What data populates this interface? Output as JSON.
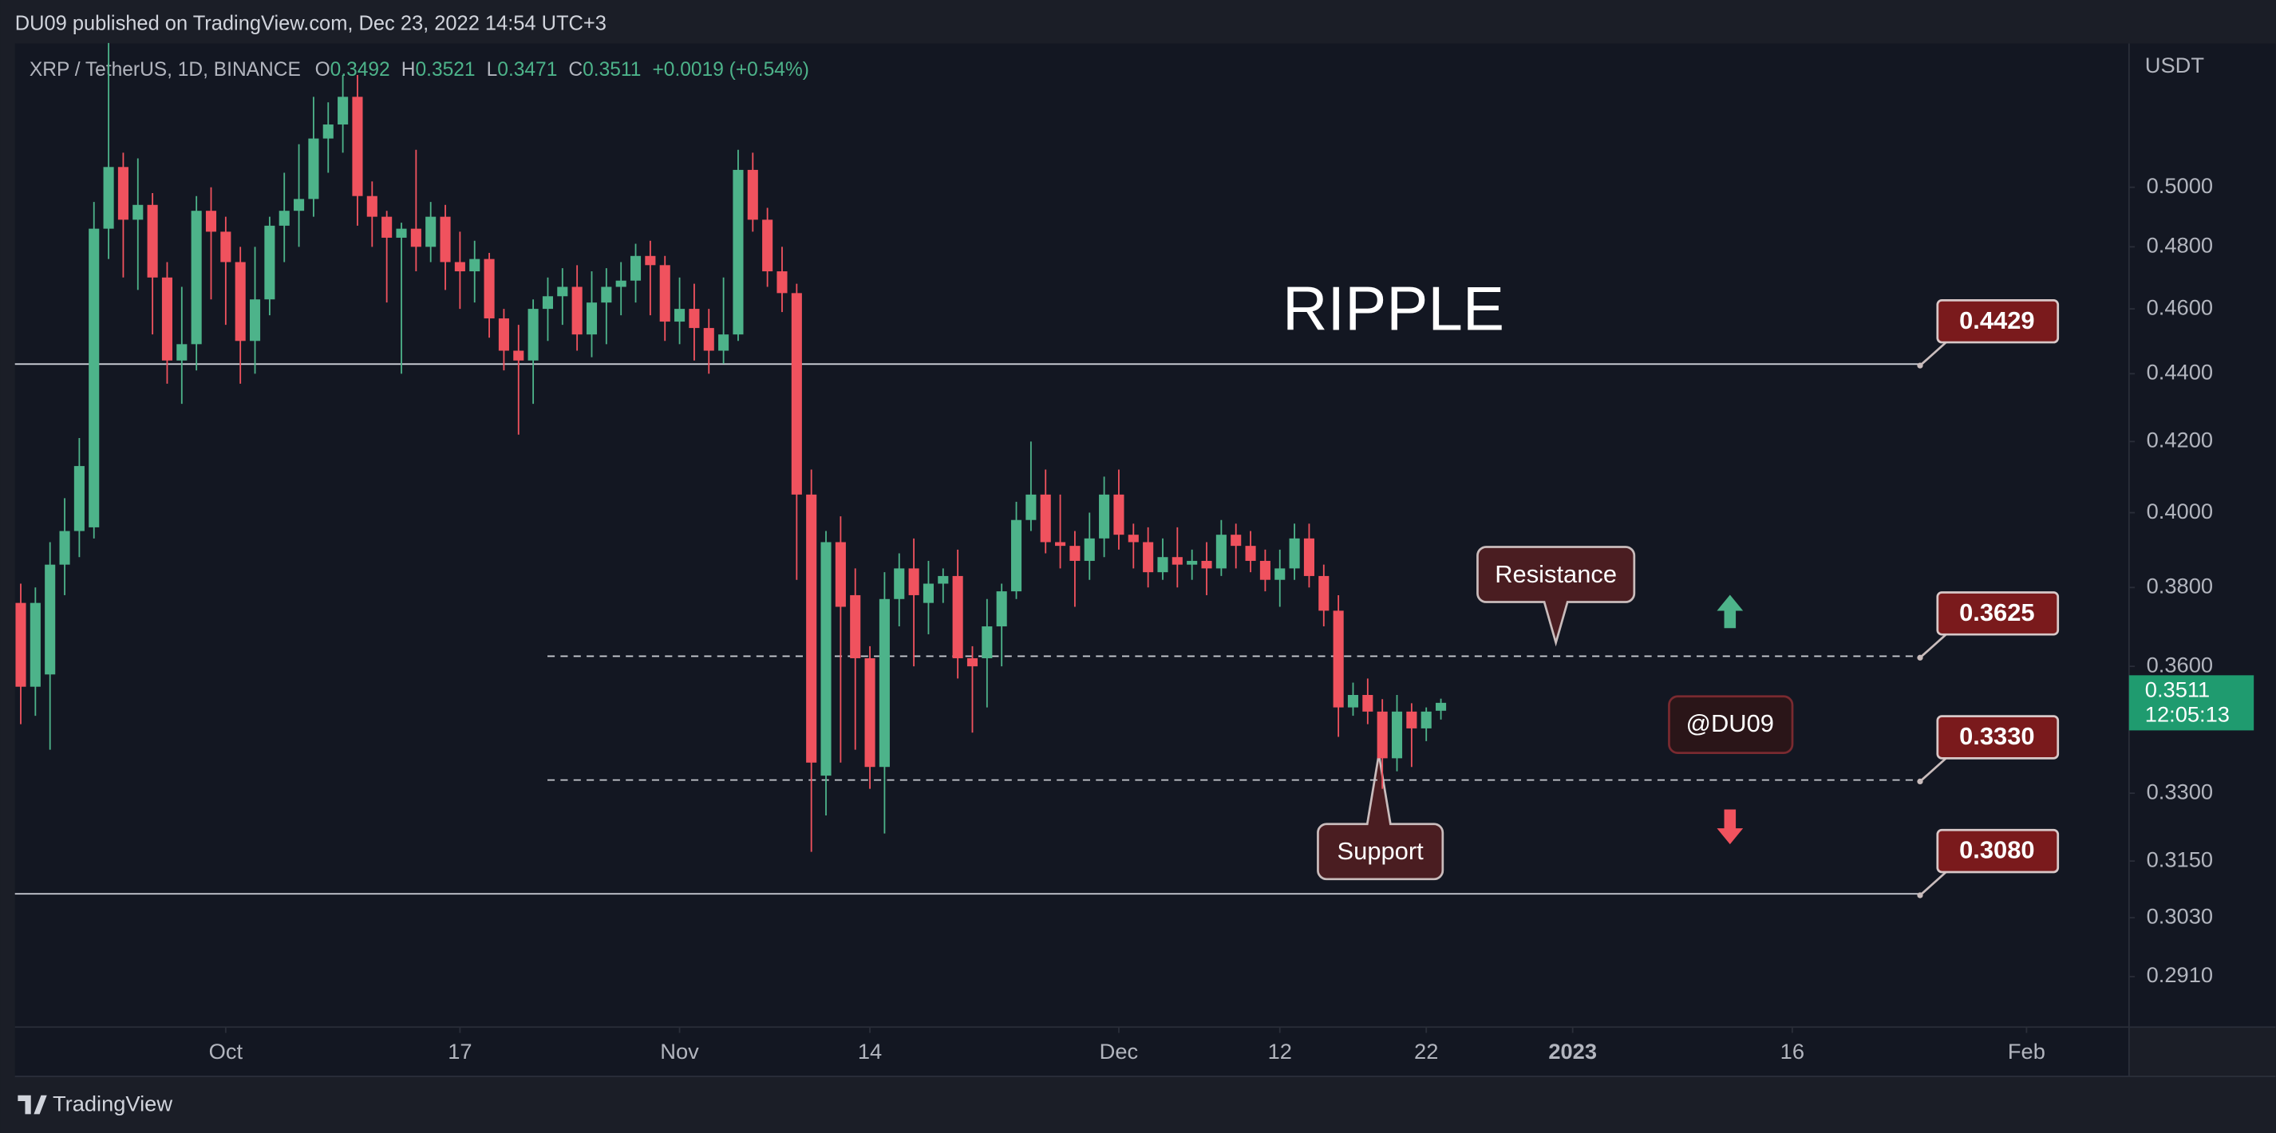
{
  "header": {
    "published": "DU09 published on TradingView.com, Dec 23, 2022 14:54 UTC+3"
  },
  "chart_data": {
    "type": "candlestick",
    "symbol": "XRP / TetherUS, 1D, BINANCE",
    "ohlc_labels": [
      "O",
      "H",
      "L",
      "C"
    ],
    "change": "+0.0019 (+0.54%)",
    "title": "RIPPLE",
    "up_color": "#4db38a",
    "down_color": "#f0525e",
    "log_scale": true,
    "grid": false,
    "y_unit": "USDT",
    "ylim": [
      0.2811,
      0.5518
    ],
    "yticks": [
      {
        "value": 0.5,
        "label": "0.5000"
      },
      {
        "value": 0.48,
        "label": "0.4800"
      },
      {
        "value": 0.46,
        "label": "0.4600"
      },
      {
        "value": 0.44,
        "label": "0.4400"
      },
      {
        "value": 0.42,
        "label": "0.4200"
      },
      {
        "value": 0.4,
        "label": "0.4000"
      },
      {
        "value": 0.38,
        "label": "0.3800"
      },
      {
        "value": 0.36,
        "label": "0.3600"
      },
      {
        "value": 0.33,
        "label": "0.3300"
      },
      {
        "value": 0.315,
        "label": "0.3150"
      },
      {
        "value": 0.303,
        "label": "0.3030"
      },
      {
        "value": 0.291,
        "label": "0.2910"
      }
    ],
    "xlim": [
      "2022-09-17",
      "2023-02-08"
    ],
    "xticks": [
      {
        "value": "2022-10-01",
        "label": "Oct"
      },
      {
        "value": "2022-10-17",
        "label": "17"
      },
      {
        "value": "2022-11-01",
        "label": "Nov"
      },
      {
        "value": "2022-11-14",
        "label": "14"
      },
      {
        "value": "2022-12-01",
        "label": "Dec"
      },
      {
        "value": "2022-12-12",
        "label": "12"
      },
      {
        "value": "2022-12-22",
        "label": "22"
      },
      {
        "value": "2023-01-01",
        "label": "2023"
      },
      {
        "value": "2023-01-16",
        "label": "16"
      },
      {
        "value": "2023-02-01",
        "label": "Feb"
      }
    ],
    "x": [
      "2022-09-17",
      "2022-09-18",
      "2022-09-19",
      "2022-09-20",
      "2022-09-21",
      "2022-09-22",
      "2022-09-23",
      "2022-09-24",
      "2022-09-25",
      "2022-09-26",
      "2022-09-27",
      "2022-09-28",
      "2022-09-29",
      "2022-09-30",
      "2022-10-01",
      "2022-10-02",
      "2022-10-03",
      "2022-10-04",
      "2022-10-05",
      "2022-10-06",
      "2022-10-07",
      "2022-10-08",
      "2022-10-09",
      "2022-10-10",
      "2022-10-11",
      "2022-10-12",
      "2022-10-13",
      "2022-10-14",
      "2022-10-15",
      "2022-10-16",
      "2022-10-17",
      "2022-10-18",
      "2022-10-19",
      "2022-10-20",
      "2022-10-21",
      "2022-10-22",
      "2022-10-23",
      "2022-10-24",
      "2022-10-25",
      "2022-10-26",
      "2022-10-27",
      "2022-10-28",
      "2022-10-29",
      "2022-10-30",
      "2022-10-31",
      "2022-11-01",
      "2022-11-02",
      "2022-11-03",
      "2022-11-04",
      "2022-11-05",
      "2022-11-06",
      "2022-11-07",
      "2022-11-08",
      "2022-11-09",
      "2022-11-10",
      "2022-11-11",
      "2022-11-12",
      "2022-11-13",
      "2022-11-14",
      "2022-11-15",
      "2022-11-16",
      "2022-11-17",
      "2022-11-18",
      "2022-11-19",
      "2022-11-20",
      "2022-11-21",
      "2022-11-22",
      "2022-11-23",
      "2022-11-24",
      "2022-11-25",
      "2022-11-26",
      "2022-11-27",
      "2022-11-28",
      "2022-11-29",
      "2022-11-30",
      "2022-12-01",
      "2022-12-02",
      "2022-12-03",
      "2022-12-04",
      "2022-12-05",
      "2022-12-06",
      "2022-12-07",
      "2022-12-08",
      "2022-12-09",
      "2022-12-10",
      "2022-12-11",
      "2022-12-12",
      "2022-12-13",
      "2022-12-14",
      "2022-12-15",
      "2022-12-16",
      "2022-12-17",
      "2022-12-18",
      "2022-12-19",
      "2022-12-20",
      "2022-12-21",
      "2022-12-22",
      "2022-12-23"
    ],
    "open": [
      0.376,
      0.355,
      0.358,
      0.386,
      0.395,
      0.396,
      0.486,
      0.507,
      0.489,
      0.494,
      0.47,
      0.444,
      0.449,
      0.492,
      0.485,
      0.475,
      0.45,
      0.463,
      0.487,
      0.492,
      0.496,
      0.517,
      0.522,
      0.532,
      0.497,
      0.49,
      0.483,
      0.486,
      0.48,
      0.49,
      0.475,
      0.472,
      0.476,
      0.457,
      0.447,
      0.444,
      0.46,
      0.464,
      0.467,
      0.452,
      0.462,
      0.467,
      0.469,
      0.477,
      0.474,
      0.456,
      0.46,
      0.454,
      0.447,
      0.452,
      0.506,
      0.489,
      0.472,
      0.465,
      0.405,
      0.334,
      0.392,
      0.378,
      0.362,
      0.336,
      0.377,
      0.385,
      0.376,
      0.381,
      0.383,
      0.362,
      0.362,
      0.37,
      0.379,
      0.398,
      0.405,
      0.392,
      0.391,
      0.387,
      0.393,
      0.405,
      0.394,
      0.392,
      0.384,
      0.388,
      0.386,
      0.387,
      0.385,
      0.394,
      0.391,
      0.387,
      0.382,
      0.385,
      0.393,
      0.383,
      0.374,
      0.35,
      0.353,
      0.349,
      0.338,
      0.349,
      0.345,
      0.3492
    ],
    "high": [
      0.381,
      0.38,
      0.392,
      0.404,
      0.421,
      0.495,
      0.552,
      0.512,
      0.51,
      0.498,
      0.475,
      0.467,
      0.497,
      0.5,
      0.49,
      0.48,
      0.48,
      0.49,
      0.505,
      0.515,
      0.532,
      0.53,
      0.54,
      0.54,
      0.502,
      0.492,
      0.488,
      0.513,
      0.495,
      0.494,
      0.485,
      0.482,
      0.478,
      0.46,
      0.455,
      0.463,
      0.47,
      0.473,
      0.474,
      0.472,
      0.473,
      0.475,
      0.481,
      0.482,
      0.477,
      0.47,
      0.468,
      0.46,
      0.47,
      0.513,
      0.512,
      0.493,
      0.48,
      0.468,
      0.412,
      0.395,
      0.399,
      0.385,
      0.365,
      0.384,
      0.389,
      0.393,
      0.387,
      0.385,
      0.39,
      0.365,
      0.377,
      0.381,
      0.403,
      0.42,
      0.412,
      0.405,
      0.395,
      0.4,
      0.41,
      0.412,
      0.397,
      0.396,
      0.393,
      0.396,
      0.39,
      0.392,
      0.398,
      0.397,
      0.395,
      0.39,
      0.39,
      0.397,
      0.397,
      0.386,
      0.378,
      0.356,
      0.357,
      0.352,
      0.353,
      0.351,
      0.35,
      0.3521
    ],
    "low": [
      0.346,
      0.348,
      0.34,
      0.378,
      0.388,
      0.393,
      0.476,
      0.47,
      0.466,
      0.452,
      0.437,
      0.431,
      0.441,
      0.463,
      0.455,
      0.437,
      0.44,
      0.458,
      0.475,
      0.48,
      0.49,
      0.505,
      0.512,
      0.487,
      0.48,
      0.462,
      0.44,
      0.472,
      0.475,
      0.466,
      0.46,
      0.462,
      0.451,
      0.441,
      0.422,
      0.431,
      0.45,
      0.455,
      0.447,
      0.445,
      0.449,
      0.458,
      0.462,
      0.458,
      0.45,
      0.449,
      0.444,
      0.44,
      0.443,
      0.45,
      0.485,
      0.467,
      0.459,
      0.382,
      0.317,
      0.325,
      0.337,
      0.34,
      0.331,
      0.321,
      0.37,
      0.36,
      0.368,
      0.376,
      0.357,
      0.344,
      0.35,
      0.36,
      0.377,
      0.395,
      0.389,
      0.385,
      0.375,
      0.382,
      0.388,
      0.39,
      0.385,
      0.38,
      0.382,
      0.38,
      0.382,
      0.378,
      0.383,
      0.385,
      0.384,
      0.379,
      0.375,
      0.382,
      0.38,
      0.37,
      0.343,
      0.348,
      0.346,
      0.331,
      0.335,
      0.336,
      0.342,
      0.3471
    ],
    "close": [
      0.355,
      0.376,
      0.386,
      0.395,
      0.413,
      0.486,
      0.507,
      0.489,
      0.494,
      0.47,
      0.444,
      0.449,
      0.492,
      0.485,
      0.475,
      0.45,
      0.463,
      0.487,
      0.492,
      0.496,
      0.517,
      0.522,
      0.532,
      0.497,
      0.49,
      0.483,
      0.486,
      0.48,
      0.49,
      0.475,
      0.472,
      0.476,
      0.457,
      0.447,
      0.444,
      0.46,
      0.464,
      0.467,
      0.452,
      0.462,
      0.467,
      0.469,
      0.477,
      0.474,
      0.456,
      0.46,
      0.454,
      0.447,
      0.452,
      0.506,
      0.489,
      0.472,
      0.465,
      0.405,
      0.337,
      0.392,
      0.375,
      0.362,
      0.336,
      0.377,
      0.385,
      0.378,
      0.381,
      0.383,
      0.362,
      0.36,
      0.37,
      0.379,
      0.398,
      0.405,
      0.392,
      0.391,
      0.387,
      0.393,
      0.405,
      0.394,
      0.392,
      0.384,
      0.388,
      0.386,
      0.387,
      0.385,
      0.394,
      0.391,
      0.387,
      0.382,
      0.385,
      0.393,
      0.383,
      0.374,
      0.35,
      0.353,
      0.349,
      0.338,
      0.349,
      0.345,
      0.349,
      0.3511
    ],
    "countdown": "12:05:13",
    "levels": [
      {
        "value": 0.4429,
        "label": "0.4429",
        "style": "solid"
      },
      {
        "value": 0.3625,
        "label": "0.3625",
        "style": "dashed"
      },
      {
        "value": 0.333,
        "label": "0.3330",
        "style": "dashed"
      },
      {
        "value": 0.308,
        "label": "0.3080",
        "style": "solid"
      }
    ],
    "annotations": {
      "resistance": "Resistance",
      "support": "Support",
      "signature": "@DU09"
    }
  },
  "footer": {
    "brand": "TradingView"
  }
}
